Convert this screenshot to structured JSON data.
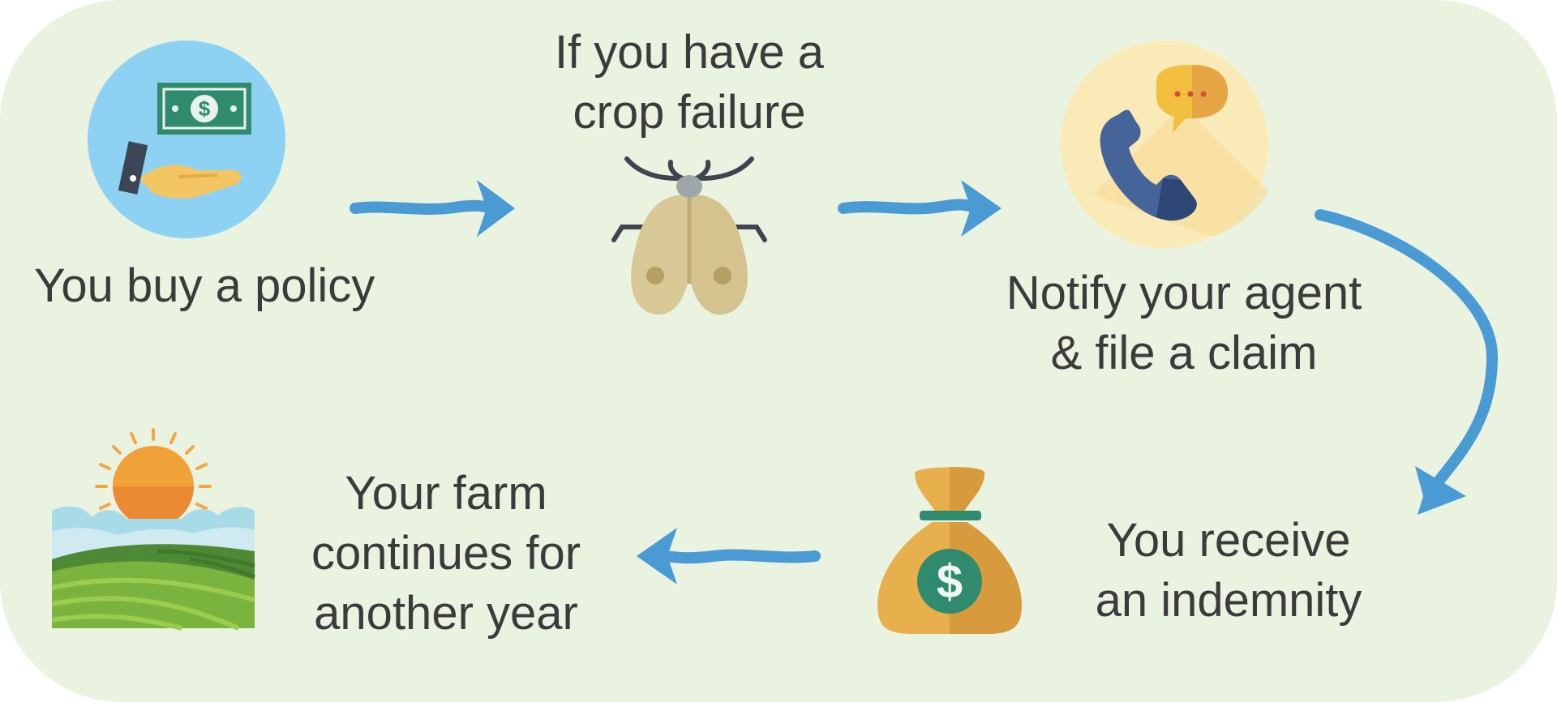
{
  "steps": {
    "buy_policy": {
      "lines": [
        "You buy a policy"
      ],
      "icon": "money-hand-icon"
    },
    "crop_failure": {
      "lines": [
        "If you have a",
        "crop failure"
      ],
      "icon": "moth-icon"
    },
    "notify_agent": {
      "lines": [
        "Notify your agent",
        "& file a claim"
      ],
      "icon": "phone-chat-icon"
    },
    "receive_indemnity": {
      "lines": [
        "You receive",
        "an indemnity"
      ],
      "icon": "money-bag-icon"
    },
    "farm_continues": {
      "lines": [
        "Your farm",
        "continues for",
        "another year"
      ],
      "icon": "farm-sunrise-icon"
    }
  },
  "colors": {
    "background": "#eaf2e0",
    "arrow": "#4a9ad4",
    "text": "#3b3b3b"
  }
}
